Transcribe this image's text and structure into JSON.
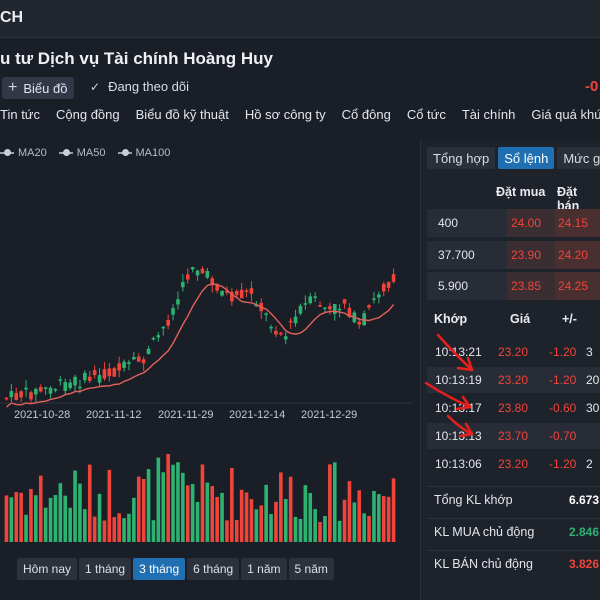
{
  "header": {
    "code": "CH"
  },
  "company_name": "u tư Dịch vụ Tài chính Hoàng Huy",
  "toolbar": {
    "chart_label": "Biểu đồ",
    "follow_label": "Đang theo dõi",
    "change_value": "-0"
  },
  "nav": [
    "Tin tức",
    "Cộng đồng",
    "Biểu đồ kỹ thuật",
    "Hồ sơ công ty",
    "Cổ đông",
    "Cổ tức",
    "Tài chính",
    "Giá quá khứ"
  ],
  "legend": [
    "MA20",
    "MA50",
    "MA100"
  ],
  "colors": {
    "up": "#2db371",
    "down": "#f0443a",
    "accent": "#1f6fb2",
    "ma": "#e2615a"
  },
  "x_ticks": [
    "2021-10-28",
    "2021-11-12",
    "2021-11-29",
    "2021-12-14",
    "2021-12-29"
  ],
  "ranges": {
    "items": [
      "Hôm nay",
      "1 tháng",
      "3 tháng",
      "6 tháng",
      "1 năm",
      "5 năm"
    ],
    "active": "3 tháng"
  },
  "panel": {
    "tabs": [
      "Tổng hợp",
      "Sổ lệnh",
      "Mức giá"
    ],
    "active_tab": "Sổ lệnh",
    "orderbook_headers": {
      "bid": "Đặt mua",
      "ask": "Đặt bán"
    },
    "orderbook": [
      {
        "vol": "400",
        "bid": "24.00",
        "ask": "24.15"
      },
      {
        "vol": "37.700",
        "bid": "23.90",
        "ask": "24.20"
      },
      {
        "vol": "5.900",
        "bid": "23.85",
        "ask": "24.25"
      }
    ],
    "trade_headers": {
      "time": "Khớp",
      "price": "Giá",
      "change": "+/-"
    },
    "trades": [
      {
        "time": "10:13:21",
        "price": "23.20",
        "change": "-1.20",
        "vol": "3"
      },
      {
        "time": "10:13:19",
        "price": "23.20",
        "change": "-1.20",
        "vol": "20"
      },
      {
        "time": "10:13:17",
        "price": "23.80",
        "change": "-0.60",
        "vol": "30"
      },
      {
        "time": "10:13:13",
        "price": "23.70",
        "change": "-0.70",
        "vol": ""
      },
      {
        "time": "10:13:06",
        "price": "23.20",
        "change": "-1.20",
        "vol": "2"
      }
    ],
    "stats": [
      {
        "label": "Tổng KL khớp",
        "value": "6.673",
        "color": "#ffffff"
      },
      {
        "label": "KL MUA chủ động",
        "value": "2.846",
        "color": "#2db371"
      },
      {
        "label": "KL BÁN chủ động",
        "value": "3.826",
        "color": "#f0443a"
      }
    ]
  }
}
